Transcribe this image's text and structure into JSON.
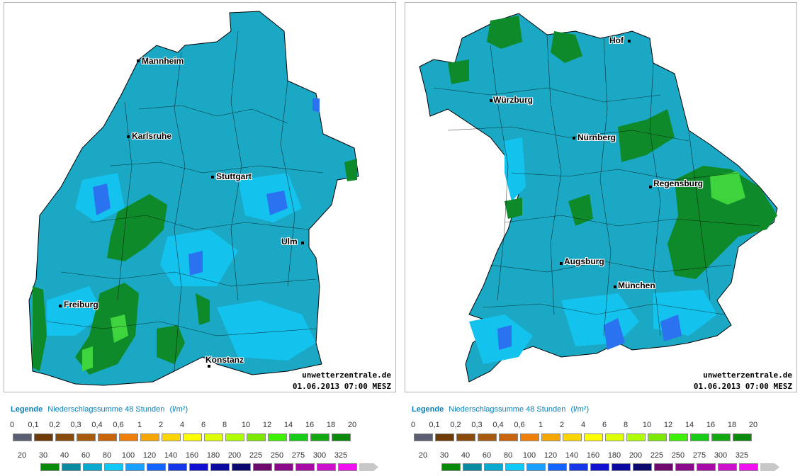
{
  "panels": [
    {
      "cities": [
        {
          "name": "Mannheim"
        },
        {
          "name": "Karlsruhe"
        },
        {
          "name": "Stuttgart"
        },
        {
          "name": "Ulm"
        },
        {
          "name": "Freiburg"
        },
        {
          "name": "Konstanz"
        }
      ],
      "watermark": {
        "site": "unwetterzentrale.de",
        "datetime": "01.06.2013 07:00 MESZ"
      }
    },
    {
      "cities": [
        {
          "name": "Hof"
        },
        {
          "name": "Würzburg"
        },
        {
          "name": "Nürnberg"
        },
        {
          "name": "Regensburg"
        },
        {
          "name": "Augsburg"
        },
        {
          "name": "München"
        }
      ],
      "watermark": {
        "site": "unwetterzentrale.de",
        "datetime": "01.06.2013 07:00 MESZ"
      }
    }
  ],
  "legend": {
    "title": "Legende",
    "subtitle": "Niederschlagssumme 48 Stunden",
    "unit": "(l/m²)",
    "row1_labels": [
      "0",
      "0,1",
      "0,2",
      "0,3",
      "0,4",
      "0,6",
      "1",
      "2",
      "4",
      "6",
      "8",
      "10",
      "12",
      "14",
      "16",
      "18",
      "20"
    ],
    "row1_colors": [
      "#5a5f73",
      "#6e3a06",
      "#8a4a0a",
      "#a85a0c",
      "#c8640c",
      "#f07f0a",
      "#f6a600",
      "#ffd500",
      "#ffff00",
      "#ddff00",
      "#b0ff00",
      "#7ce800",
      "#3cf000",
      "#16cc16",
      "#12a812",
      "#0a8a0a"
    ],
    "row2_labels": [
      "20",
      "30",
      "40",
      "60",
      "80",
      "100",
      "120",
      "140",
      "160",
      "180",
      "200",
      "225",
      "250",
      "275",
      "300",
      "325"
    ],
    "row2_colors": [
      "#0a8a0a",
      "#0a8aa0",
      "#0aaad0",
      "#10c8f6",
      "#1aa0ff",
      "#1464ff",
      "#1438e8",
      "#1010d0",
      "#0a0aa0",
      "#0a0a6e",
      "#6e0a6e",
      "#8a0a8a",
      "#a80aa8",
      "#cc10cc",
      "#f010f0",
      "#c8c8c8"
    ]
  },
  "colors": {
    "map_base": "#1aa8c4",
    "light_blue": "#12c4f2",
    "green": "#108a2a",
    "bright_green": "#3cd43c",
    "blue": "#2070f0",
    "title": "#0d7fb5"
  }
}
